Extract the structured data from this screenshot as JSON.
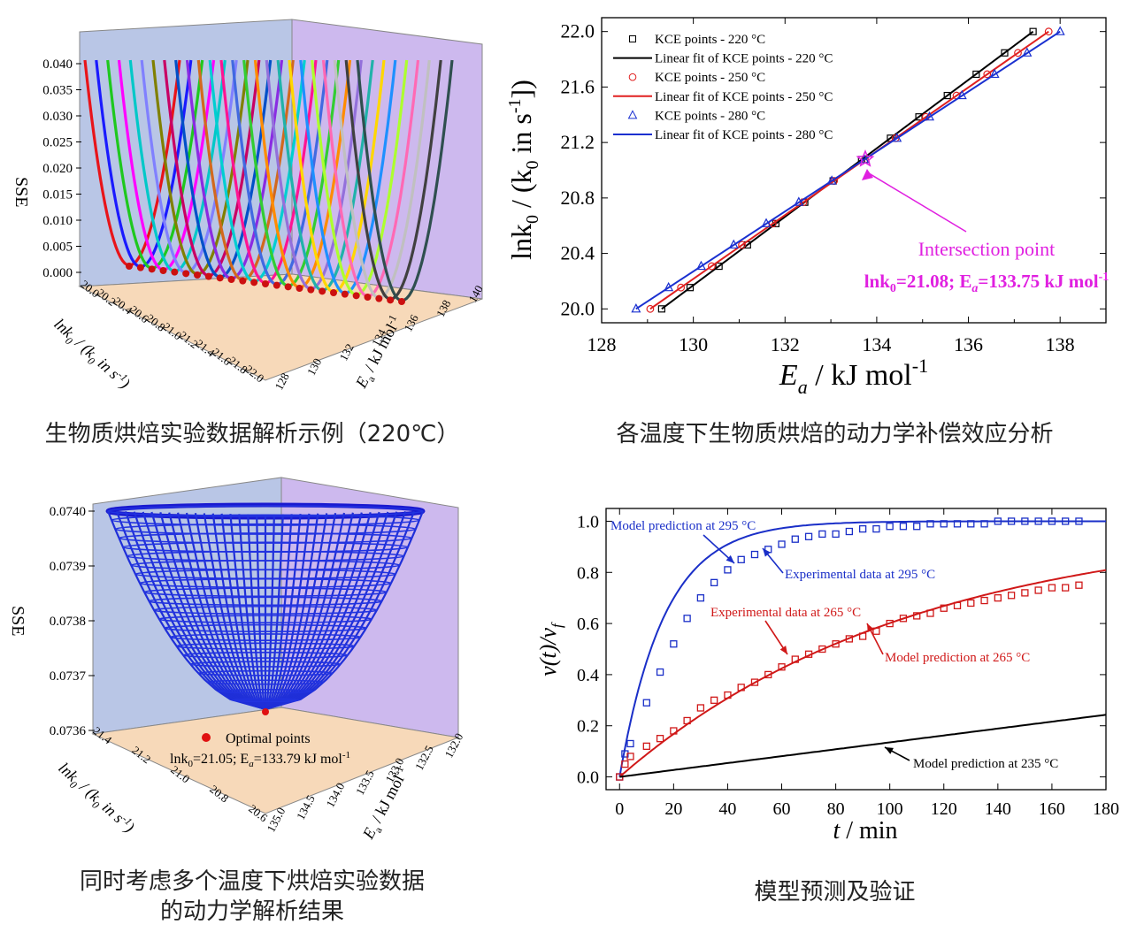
{
  "captions": {
    "tl": "生物质烘焙实验数据解析示例（220℃）",
    "tr": "各温度下生物质烘焙的动力学补偿效应分析",
    "bl_line1": "同时考虑多个温度下烘焙实验数据",
    "bl_line2": "的动力学解析结果",
    "br": "模型预测及验证"
  },
  "chart_data": [
    {
      "id": "tl",
      "type": "surface3d-curves",
      "zlabel": "SSE",
      "z_ticks": [
        "0.040",
        "0.035",
        "0.030",
        "0.025",
        "0.020",
        "0.015",
        "0.010",
        "0.005",
        "0.000"
      ],
      "x_ticks": [
        "128",
        "130",
        "132",
        "134",
        "136",
        "138",
        "140"
      ],
      "y_ticks": [
        "20.0",
        "20.2",
        "20.4",
        "20.6",
        "20.8",
        "21.0",
        "21.2",
        "21.4",
        "21.6",
        "21.8",
        "22.0"
      ],
      "curve_colors": [
        "#e8141a",
        "#1a1aff",
        "#1ec81e",
        "#ff00ff",
        "#00c8c8",
        "#8080ff",
        "#808000",
        "#c80064",
        "#0050c8",
        "#8a2be2",
        "#d2691e",
        "#00ced1",
        "#ff1493",
        "#4169e1",
        "#32cd32",
        "#ff8c00",
        "#9370db",
        "#20b2aa",
        "#ffd700",
        "#1e90ff",
        "#adff2f",
        "#ff69b4",
        "#c0c0c0",
        "#404040",
        "#2f4f4f"
      ]
    },
    {
      "id": "tr",
      "type": "scatter-line",
      "xlim": [
        128,
        139
      ],
      "ylim": [
        19.9,
        22.1
      ],
      "x_ticks": [
        128,
        130,
        132,
        134,
        136,
        138
      ],
      "y_ticks": [
        20.0,
        20.4,
        20.8,
        21.2,
        21.6,
        22.0
      ],
      "series": [
        {
          "name": "KCE points - 220 °C",
          "marker": "square",
          "color": "#000000",
          "x": [
            129.31,
            129.93,
            130.56,
            131.18,
            131.8,
            132.43,
            133.05,
            133.67,
            134.3,
            134.92,
            135.54,
            136.17,
            136.79,
            137.41
          ],
          "y": [
            20.0,
            20.1538,
            20.3077,
            20.4615,
            20.6154,
            20.7692,
            20.9231,
            21.0769,
            21.2308,
            21.3846,
            21.5385,
            21.6923,
            21.8462,
            22.0
          ]
        },
        {
          "name": "Linear fit of KCE points - 220 °C",
          "line": true,
          "color": "#000000",
          "x": [
            129.31,
            137.41
          ],
          "y": [
            20.0,
            22.0
          ]
        },
        {
          "name": "KCE points - 250 °C",
          "marker": "circle",
          "color": "#e02020",
          "x": [
            129.06,
            129.73,
            130.4,
            131.06,
            131.73,
            132.4,
            133.07,
            133.74,
            134.41,
            135.07,
            135.74,
            136.41,
            137.08,
            137.75
          ],
          "y": [
            20.0,
            20.1538,
            20.3077,
            20.4615,
            20.6154,
            20.7692,
            20.9231,
            21.0769,
            21.2308,
            21.3846,
            21.5385,
            21.6923,
            21.8462,
            22.0
          ]
        },
        {
          "name": "Linear fit of KCE points - 250 °C",
          "line": true,
          "color": "#e02020",
          "x": [
            129.06,
            137.75
          ],
          "y": [
            20.0,
            22.0
          ]
        },
        {
          "name": "KCE points - 280 °C",
          "marker": "triangle",
          "color": "#1a30d0",
          "x": [
            128.75,
            129.46,
            130.17,
            130.88,
            131.59,
            132.3,
            133.02,
            133.73,
            134.44,
            135.15,
            135.86,
            136.57,
            137.28,
            138.0
          ],
          "y": [
            20.0,
            20.1538,
            20.3077,
            20.4615,
            20.6154,
            20.7692,
            20.9231,
            21.0769,
            21.2308,
            21.3846,
            21.5385,
            21.6923,
            21.8462,
            22.0
          ]
        },
        {
          "name": "Linear fit of KCE points - 280 °C",
          "line": true,
          "color": "#1a30d0",
          "x": [
            128.75,
            138.0
          ],
          "y": [
            20.0,
            22.0
          ]
        }
      ],
      "intersection": {
        "x": 133.75,
        "y": 21.08,
        "label": "Intersection point",
        "value_text": "lnk0=21.08; Ea=133.75 kJ mol-1"
      },
      "xlabel_main": "E",
      "xlabel_sub": "a",
      "xlabel_rest": " / kJ mol",
      "xlabel_sup": "-1",
      "ylabel_main": "lnk",
      "ylabel_sub": "0",
      "ylabel_rest": " / (k",
      "ylabel_sub2": "0",
      "ylabel_rest2": " in s",
      "ylabel_sup": "-1",
      "ylabel_end": "])"
    },
    {
      "id": "bl",
      "type": "surface3d",
      "zlabel": "SSE",
      "z_ticks": [
        "0.0740",
        "0.0739",
        "0.0738",
        "0.0737",
        "0.0736"
      ],
      "x_ticks": [
        "132.0",
        "132.5",
        "133.0",
        "133.5",
        "134.0",
        "134.5",
        "135.0"
      ],
      "y_ticks": [
        "21.4",
        "21.2",
        "21.0",
        "20.8",
        "20.6"
      ],
      "legend": "Optimal points",
      "optimal_text": "lnk0=21.05; Ea=133.79 kJ mol-1"
    },
    {
      "id": "br",
      "type": "scatter-line",
      "xlim": [
        -5,
        180
      ],
      "ylim": [
        -0.05,
        1.05
      ],
      "x_ticks": [
        0,
        20,
        40,
        60,
        80,
        100,
        120,
        140,
        160,
        180
      ],
      "y_ticks": [
        "0.0",
        "0.2",
        "0.4",
        "0.6",
        "0.8",
        "1.0"
      ],
      "xlabel": "t / min",
      "ylabel": "v(t)/vf",
      "series": [
        {
          "name": "Model prediction at 295 °C",
          "line": true,
          "color": "#1a2fc8",
          "k": 0.06,
          "cap": 1.0
        },
        {
          "name": "Experimental data at 295 °C",
          "marker": "square",
          "color": "#1a2fc8",
          "x": [
            0,
            2,
            4,
            10,
            15,
            20,
            25,
            30,
            35,
            40,
            45,
            50,
            55,
            60,
            65,
            70,
            75,
            80,
            85,
            90,
            95,
            100,
            105,
            110,
            115,
            120,
            125,
            130,
            135,
            140,
            145,
            150,
            155,
            160,
            165,
            170
          ],
          "y": [
            0,
            0.09,
            0.13,
            0.29,
            0.41,
            0.52,
            0.62,
            0.7,
            0.76,
            0.81,
            0.85,
            0.87,
            0.89,
            0.91,
            0.93,
            0.94,
            0.95,
            0.95,
            0.96,
            0.97,
            0.97,
            0.98,
            0.98,
            0.98,
            0.99,
            0.99,
            0.99,
            0.99,
            0.99,
            1.0,
            1.0,
            1.0,
            1.0,
            1.0,
            1.0,
            1.0
          ]
        },
        {
          "name": "Model prediction at 265 °C",
          "line": true,
          "color": "#d01818",
          "k": 0.0092,
          "cap": 1.0
        },
        {
          "name": "Experimental data at 265 °C",
          "marker": "square",
          "color": "#d01818",
          "x": [
            0,
            2,
            4,
            10,
            15,
            20,
            25,
            30,
            35,
            40,
            45,
            50,
            55,
            60,
            65,
            70,
            75,
            80,
            85,
            90,
            95,
            100,
            105,
            110,
            115,
            120,
            125,
            130,
            135,
            140,
            145,
            150,
            155,
            160,
            165,
            170
          ],
          "y": [
            0,
            0.05,
            0.08,
            0.12,
            0.15,
            0.18,
            0.22,
            0.27,
            0.3,
            0.32,
            0.35,
            0.37,
            0.4,
            0.43,
            0.46,
            0.48,
            0.5,
            0.52,
            0.54,
            0.55,
            0.57,
            0.6,
            0.62,
            0.63,
            0.64,
            0.66,
            0.67,
            0.68,
            0.69,
            0.7,
            0.71,
            0.72,
            0.73,
            0.74,
            0.74,
            0.75
          ]
        },
        {
          "name": "Model prediction at 235 °C",
          "line": true,
          "color": "#000000",
          "linear": 0.00135
        }
      ],
      "annot": {
        "m295": "Model prediction at 295 °C",
        "e295": "Experimental data at 295 °C",
        "e265": "Experimental data at 265 °C",
        "m265": "Model prediction at 265 °C",
        "m235": "Model prediction at 235 °C"
      }
    }
  ],
  "legend_tr": [
    "KCE points - 220 °C",
    "Linear fit of KCE points - 220 °C",
    "KCE points - 250 °C",
    "Linear fit of KCE points - 250 °C",
    "KCE points - 280 °C",
    "Linear fit of KCE points - 280 °C"
  ],
  "tl_labels": {
    "zlabel": "SSE",
    "ylabel_a": "lnk",
    "ylabel_sub": "0",
    "ylabel_b": " / (k",
    "ylabel_sub2": "0",
    "ylabel_c": " in s",
    "ylabel_sup": "-1",
    "ylabel_d": ")",
    "xlabel_a": "E",
    "xlabel_sub": "a",
    "xlabel_b": " / kJ mol",
    "xlabel_sup": "-1"
  },
  "bl_labels": {
    "zlabel": "SSE",
    "legend": "Optimal points",
    "opt_a": "lnk",
    "opt_sub": "0",
    "opt_b": "=21.05; E",
    "opt_sub2": "a",
    "opt_c": "=133.79 kJ mol",
    "opt_sup": "-1"
  },
  "tr_labels": {
    "intersection": "Intersection point",
    "iv_a": "lnk",
    "iv_sub": "0",
    "iv_b": "=21.08; E",
    "iv_sub2": "a",
    "iv_c": "=133.75 kJ mol",
    "iv_sup": "-1"
  }
}
